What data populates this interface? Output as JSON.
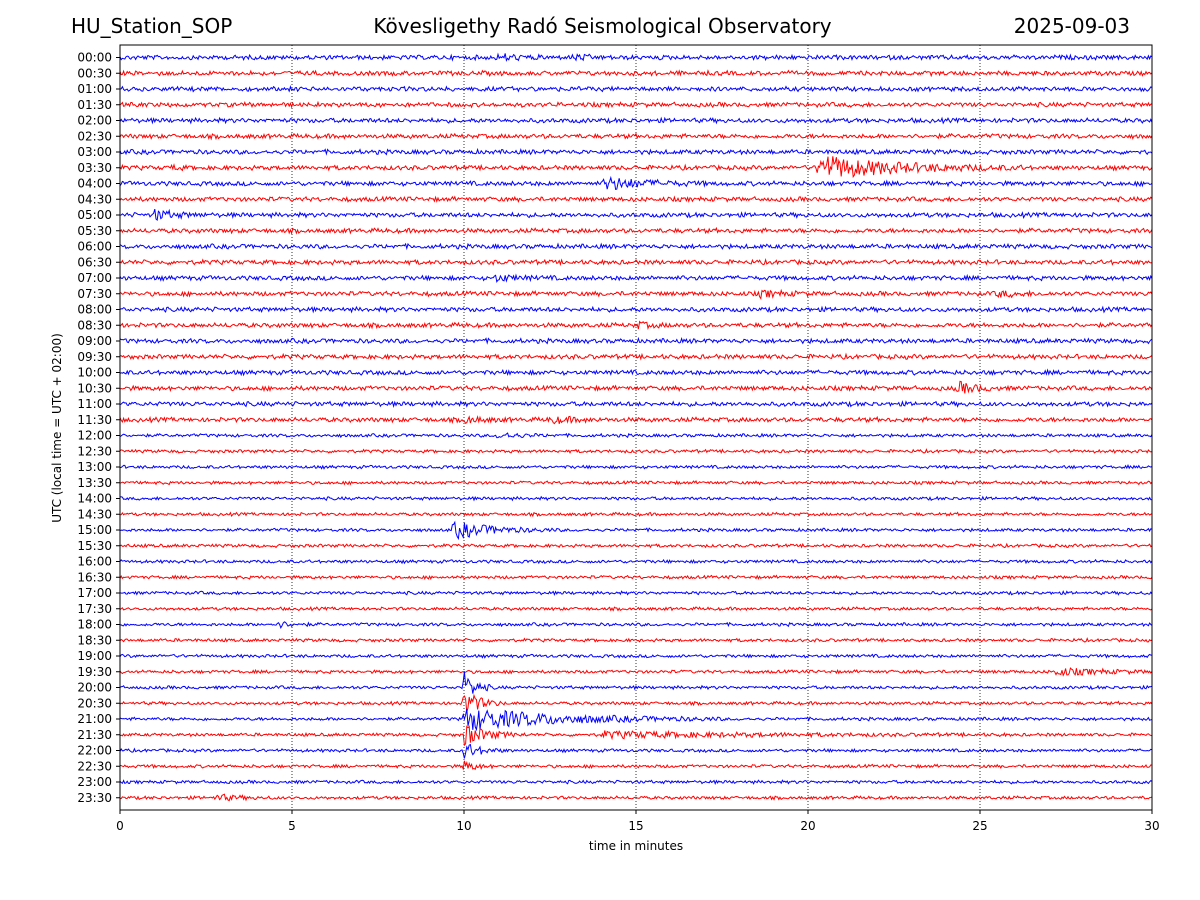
{
  "header": {
    "station": "HU_Station_SOP",
    "observatory": "Kövesligethy Radó Seismological Observatory",
    "date": "2025-09-03"
  },
  "chart_data": {
    "type": "line",
    "chart_kind": "helicorder",
    "xlabel": "time in minutes",
    "ylabel": "UTC (local time = UTC + 02:00)",
    "xlim": [
      0,
      30
    ],
    "x_ticks": [
      0,
      5,
      10,
      15,
      20,
      25,
      30
    ],
    "vertical_gridlines_minutes": [
      5,
      10,
      15,
      20,
      25
    ],
    "grid": "vertical dotted",
    "trace_colors": [
      "#0000ff",
      "#ff0000"
    ],
    "color_rule": "alternating: full-hour rows blue, half-hour rows red",
    "rows": [
      "00:00",
      "00:30",
      "01:00",
      "01:30",
      "02:00",
      "02:30",
      "03:00",
      "03:30",
      "04:00",
      "04:30",
      "05:00",
      "05:30",
      "06:00",
      "06:30",
      "07:00",
      "07:30",
      "08:00",
      "08:30",
      "09:00",
      "09:30",
      "10:00",
      "10:30",
      "11:00",
      "11:30",
      "12:00",
      "12:30",
      "13:00",
      "13:30",
      "14:00",
      "14:30",
      "15:00",
      "15:30",
      "16:00",
      "16:30",
      "17:00",
      "17:30",
      "18:00",
      "18:30",
      "19:00",
      "19:30",
      "20:00",
      "20:30",
      "21:00",
      "21:30",
      "22:00",
      "22:30",
      "23:00",
      "23:30"
    ],
    "events": [
      {
        "row": "00:00",
        "minute": 11.0,
        "amplitude": 0.4,
        "duration": 0.6
      },
      {
        "row": "00:00",
        "minute": 13.2,
        "amplitude": 0.3,
        "duration": 0.5
      },
      {
        "row": "03:30",
        "minute": 20.3,
        "amplitude": 1.7,
        "duration": 2.0
      },
      {
        "row": "03:30",
        "minute": 1.5,
        "amplitude": 0.3,
        "duration": 0.2
      },
      {
        "row": "04:00",
        "minute": 14.1,
        "amplitude": 0.9,
        "duration": 1.0
      },
      {
        "row": "05:00",
        "minute": 1.0,
        "amplitude": 0.7,
        "duration": 0.5
      },
      {
        "row": "07:00",
        "minute": 10.9,
        "amplitude": 0.4,
        "duration": 0.6
      },
      {
        "row": "07:30",
        "minute": 18.6,
        "amplitude": 0.4,
        "duration": 0.6
      },
      {
        "row": "07:30",
        "minute": 25.5,
        "amplitude": 0.4,
        "duration": 0.5
      },
      {
        "row": "08:30",
        "minute": 15.0,
        "amplitude": 0.4,
        "duration": 0.4
      },
      {
        "row": "10:30",
        "minute": 24.3,
        "amplitude": 0.9,
        "duration": 0.5
      },
      {
        "row": "11:30",
        "minute": 10.0,
        "amplitude": 0.4,
        "duration": 0.5
      },
      {
        "row": "11:30",
        "minute": 12.5,
        "amplitude": 0.4,
        "duration": 0.6
      },
      {
        "row": "12:00",
        "minute": 11.0,
        "amplitude": 0.4,
        "duration": 0.6
      },
      {
        "row": "15:00",
        "minute": 9.7,
        "amplitude": 1.2,
        "duration": 1.0
      },
      {
        "row": "18:00",
        "minute": 4.6,
        "amplitude": 0.4,
        "duration": 0.4
      },
      {
        "row": "19:30",
        "minute": 27.2,
        "amplitude": 0.5,
        "duration": 1.2
      },
      {
        "row": "20:00",
        "minute": 10.0,
        "amplitude": 2.2,
        "duration": 0.3
      },
      {
        "row": "20:30",
        "minute": 10.0,
        "amplitude": 2.0,
        "duration": 0.4
      },
      {
        "row": "21:00",
        "minute": 10.0,
        "amplitude": 1.6,
        "duration": 2.5
      },
      {
        "row": "21:30",
        "minute": 10.0,
        "amplitude": 1.5,
        "duration": 0.6
      },
      {
        "row": "21:30",
        "minute": 14.0,
        "amplitude": 0.4,
        "duration": 4.0
      },
      {
        "row": "22:00",
        "minute": 10.0,
        "amplitude": 1.2,
        "duration": 0.4
      },
      {
        "row": "22:30",
        "minute": 10.0,
        "amplitude": 0.8,
        "duration": 0.3
      },
      {
        "row": "23:30",
        "minute": 2.8,
        "amplitude": 0.4,
        "duration": 0.6
      }
    ]
  }
}
